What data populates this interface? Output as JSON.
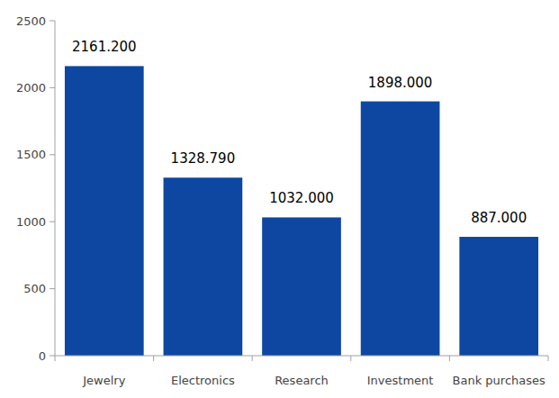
{
  "chart_data": {
    "type": "bar",
    "categories": [
      "Jewelry",
      "Electronics",
      "Research",
      "Investment",
      "Bank purchases"
    ],
    "values": [
      2161.2,
      1328.79,
      1032,
      1898,
      887
    ],
    "value_labels": [
      "2161.200",
      "1328.790",
      "1032.000",
      "1898.000",
      "887.000"
    ],
    "color": "#0d47a1",
    "ylim": [
      0,
      2500
    ],
    "yticks": [
      0,
      500,
      1000,
      1500,
      2000,
      2500
    ],
    "grid": false,
    "data_labels": true
  }
}
